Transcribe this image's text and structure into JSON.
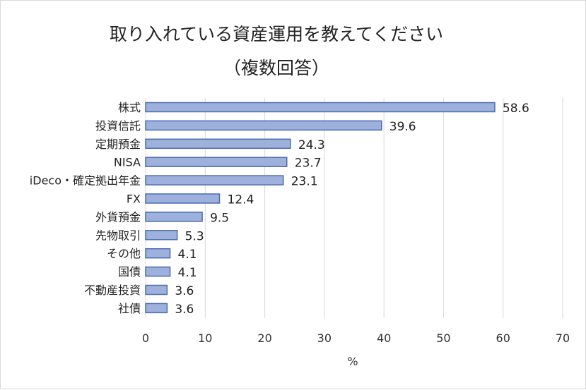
{
  "chart_data": {
    "type": "bar",
    "orientation": "horizontal",
    "title": [
      "取り入れている資産運用を教えてください",
      "（複数回答）"
    ],
    "xlabel": "%",
    "ylabel": "",
    "xlim": [
      0,
      70
    ],
    "xticks": [
      0,
      10,
      20,
      30,
      40,
      50,
      60,
      70
    ],
    "grid": true,
    "categories": [
      "株式",
      "投資信託",
      "定期預金",
      "NISA",
      "iDeco・確定拠出年金",
      "FX",
      "外貨預金",
      "先物取引",
      "その他",
      "国債",
      "不動産投資",
      "社債"
    ],
    "values": [
      58.6,
      39.6,
      24.3,
      23.7,
      23.1,
      12.4,
      9.5,
      5.3,
      4.1,
      4.1,
      3.6,
      3.6
    ],
    "value_labels": [
      "58.6",
      "39.6",
      "24.3",
      "23.7",
      "23.1",
      "12.4",
      "9.5",
      "5.3",
      "4.1",
      "4.1",
      "3.6",
      "3.6"
    ],
    "colors": {
      "bar_fill": "#9eb0dc",
      "bar_border": "#4a6cb5",
      "grid": "#d9d9d9"
    }
  }
}
